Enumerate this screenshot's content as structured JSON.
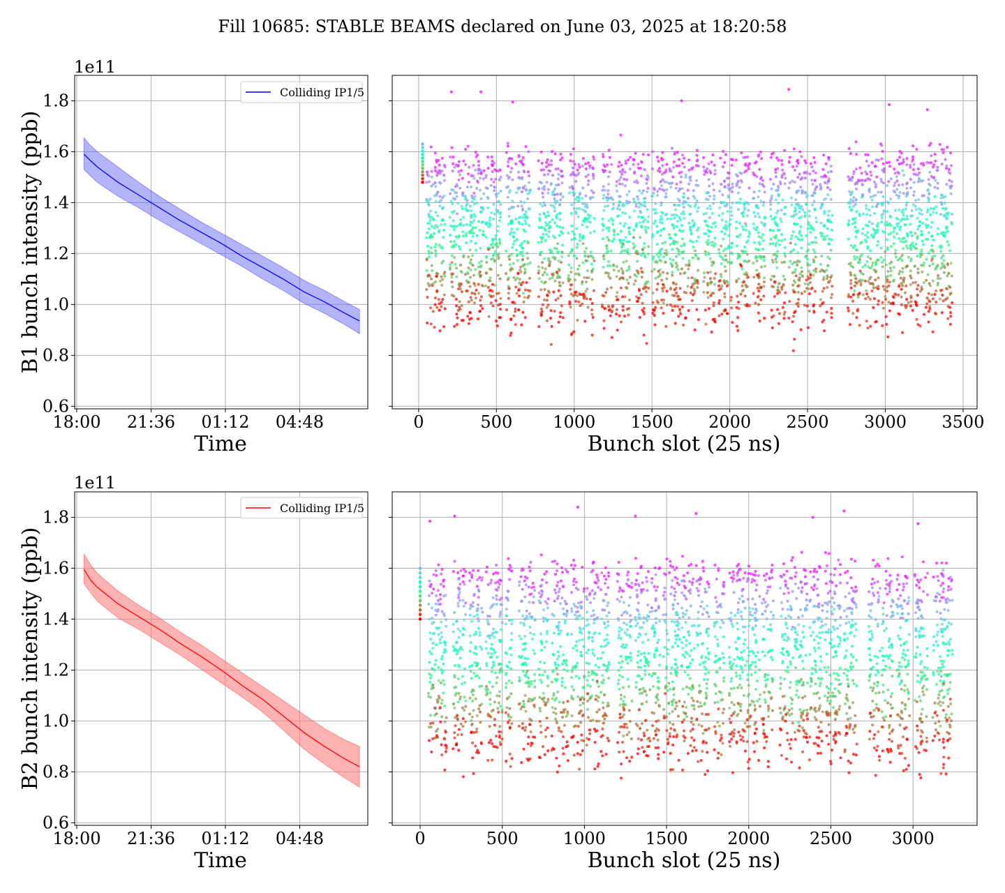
{
  "figure_title": "Fill 10685: STABLE BEAMS declared on June 03, 2025 at 18:20:58",
  "colors": {
    "b1_line": "#0000ff",
    "b1_band": "#6a6af5",
    "b2_line": "#ff0000",
    "b2_band": "#ff7f7f",
    "grid": "#b0b0b0",
    "scatter_colormap": "rainbow"
  },
  "chart_data": [
    {
      "type": "area",
      "panel": "b1-time",
      "ylabel": "B1 bunch intensity (ppb)",
      "xlabel": "Time",
      "y_multiplier": "1e11",
      "x_ticks": [
        "18:00",
        "21:36",
        "01:12",
        "04:48"
      ],
      "x_hours_since_1800": [
        0,
        3.6,
        7.2,
        10.8
      ],
      "y_ticks": [
        "0.6",
        "0.8",
        "1.0",
        "1.2",
        "1.4",
        "1.6",
        "1.8"
      ],
      "ylim": [
        0.59,
        1.9
      ],
      "xlim_hours": [
        -0.1,
        14.1
      ],
      "legend": [
        "Colliding IP1/5"
      ],
      "legend_position": "upper right",
      "grid": true,
      "series": [
        {
          "name": "Colliding IP1/5",
          "x_hours": [
            0.35,
            0.6,
            1.0,
            2.0,
            3.0,
            4.0,
            5.0,
            6.0,
            7.0,
            8.0,
            9.0,
            10.0,
            11.0,
            12.0,
            13.0,
            13.7
          ],
          "mean": [
            1.59,
            1.57,
            1.54,
            1.48,
            1.43,
            1.38,
            1.33,
            1.285,
            1.24,
            1.19,
            1.145,
            1.1,
            1.05,
            1.01,
            0.965,
            0.935
          ],
          "upper": [
            1.655,
            1.63,
            1.6,
            1.54,
            1.48,
            1.425,
            1.375,
            1.325,
            1.28,
            1.235,
            1.19,
            1.145,
            1.095,
            1.055,
            1.01,
            0.98
          ],
          "lower": [
            1.53,
            1.51,
            1.48,
            1.425,
            1.38,
            1.33,
            1.285,
            1.24,
            1.195,
            1.15,
            1.1,
            1.055,
            1.005,
            0.965,
            0.92,
            0.885
          ]
        }
      ]
    },
    {
      "type": "scatter",
      "panel": "b1-bunch",
      "xlabel": "Bunch slot (25 ns)",
      "x_ticks": [
        "0",
        "500",
        "1000",
        "1500",
        "2000",
        "2500",
        "3000",
        "3500"
      ],
      "x_tick_values": [
        0,
        500,
        1000,
        1500,
        2000,
        2500,
        3000,
        3500
      ],
      "xlim": [
        -170,
        3590
      ],
      "ylim": [
        0.59,
        1.9
      ],
      "grid": true,
      "colormap": "rainbow",
      "color_encodes": "time (purple = start of fill, red = end)",
      "intensity_range": [
        1.56,
        0.98
      ],
      "trains_x_ranges": [
        [
          50,
          170
        ],
        [
          200,
          290
        ],
        [
          300,
          420
        ],
        [
          430,
          530
        ],
        [
          560,
          620
        ],
        [
          620,
          720
        ],
        [
          770,
          810
        ],
        [
          810,
          930
        ],
        [
          960,
          1040
        ],
        [
          1050,
          1130
        ],
        [
          1180,
          1260
        ],
        [
          1270,
          1360
        ],
        [
          1380,
          1480
        ],
        [
          1500,
          1600
        ],
        [
          1610,
          1720
        ],
        [
          1730,
          1800
        ],
        [
          1830,
          1910
        ],
        [
          1930,
          2020
        ],
        [
          2040,
          2130
        ],
        [
          2150,
          2230
        ],
        [
          2260,
          2360
        ],
        [
          2380,
          2470
        ],
        [
          2480,
          2560
        ],
        [
          2580,
          2660
        ],
        [
          2760,
          2860
        ],
        [
          2870,
          2960
        ],
        [
          2970,
          3040
        ],
        [
          3050,
          3150
        ],
        [
          3160,
          3250
        ],
        [
          3260,
          3340
        ],
        [
          3350,
          3430
        ]
      ],
      "pilot_x": 25,
      "pilot_range": [
        1.48,
        1.63
      ],
      "outlier_points": [
        [
          210,
          1.835
        ],
        [
          400,
          1.835
        ],
        [
          605,
          1.795
        ],
        [
          1690,
          1.8
        ],
        [
          2380,
          1.845
        ],
        [
          3025,
          1.785
        ],
        [
          3270,
          1.765
        ]
      ]
    },
    {
      "type": "area",
      "panel": "b2-time",
      "ylabel": "B2 bunch intensity (ppb)",
      "xlabel": "Time",
      "y_multiplier": "1e11",
      "x_ticks": [
        "18:00",
        "21:36",
        "01:12",
        "04:48"
      ],
      "x_hours_since_1800": [
        0,
        3.6,
        7.2,
        10.8
      ],
      "y_ticks": [
        "0.6",
        "0.8",
        "1.0",
        "1.2",
        "1.4",
        "1.6",
        "1.8"
      ],
      "ylim": [
        0.59,
        1.9
      ],
      "xlim_hours": [
        -0.1,
        14.1
      ],
      "legend": [
        "Colliding IP1/5"
      ],
      "legend_position": "upper right",
      "grid": true,
      "series": [
        {
          "name": "Colliding IP1/5",
          "x_hours": [
            0.35,
            0.7,
            1.0,
            2.0,
            3.0,
            4.0,
            5.0,
            6.0,
            7.0,
            8.0,
            9.0,
            10.0,
            11.0,
            12.0,
            13.0,
            13.7
          ],
          "mean": [
            1.595,
            1.55,
            1.525,
            1.46,
            1.41,
            1.36,
            1.305,
            1.255,
            1.2,
            1.14,
            1.085,
            1.02,
            0.955,
            0.9,
            0.85,
            0.82
          ],
          "upper": [
            1.655,
            1.61,
            1.58,
            1.51,
            1.455,
            1.405,
            1.35,
            1.3,
            1.245,
            1.19,
            1.135,
            1.08,
            1.025,
            0.97,
            0.925,
            0.9
          ],
          "lower": [
            1.54,
            1.5,
            1.47,
            1.405,
            1.36,
            1.31,
            1.26,
            1.205,
            1.15,
            1.095,
            1.035,
            0.965,
            0.89,
            0.83,
            0.775,
            0.74
          ]
        }
      ]
    },
    {
      "type": "scatter",
      "panel": "b2-bunch",
      "xlabel": "Bunch slot (25 ns)",
      "x_ticks": [
        "0",
        "500",
        "1000",
        "1500",
        "2000",
        "2500",
        "3000"
      ],
      "x_tick_values": [
        0,
        500,
        1000,
        1500,
        2000,
        2500,
        3000
      ],
      "xlim": [
        -170,
        3390
      ],
      "ylim": [
        0.59,
        1.9
      ],
      "grid": true,
      "colormap": "rainbow",
      "color_encodes": "time (purple = start of fill, red = end)",
      "intensity_range": [
        1.58,
        0.9
      ],
      "trains_x_ranges": [
        [
          50,
          160
        ],
        [
          200,
          280
        ],
        [
          300,
          380
        ],
        [
          400,
          500
        ],
        [
          520,
          560
        ],
        [
          600,
          700
        ],
        [
          720,
          780
        ],
        [
          800,
          900
        ],
        [
          920,
          1000
        ],
        [
          1010,
          1090
        ],
        [
          1100,
          1150
        ],
        [
          1200,
          1290
        ],
        [
          1310,
          1400
        ],
        [
          1410,
          1460
        ],
        [
          1480,
          1580
        ],
        [
          1590,
          1670
        ],
        [
          1680,
          1760
        ],
        [
          1790,
          1850
        ],
        [
          1880,
          1980
        ],
        [
          1990,
          2070
        ],
        [
          2080,
          2150
        ],
        [
          2190,
          2270
        ],
        [
          2280,
          2360
        ],
        [
          2370,
          2450
        ],
        [
          2460,
          2520
        ],
        [
          2520,
          2560
        ],
        [
          2580,
          2660
        ],
        [
          2730,
          2800
        ],
        [
          2810,
          2880
        ],
        [
          2900,
          2980
        ],
        [
          3010,
          3090
        ],
        [
          3120,
          3190
        ],
        [
          3180,
          3240
        ]
      ],
      "pilot_x": 0,
      "pilot_range": [
        1.4,
        1.6
      ],
      "outlier_points": [
        [
          60,
          1.785
        ],
        [
          210,
          1.805
        ],
        [
          960,
          1.84
        ],
        [
          1310,
          1.805
        ],
        [
          1680,
          1.815
        ],
        [
          2390,
          1.8
        ],
        [
          2580,
          1.825
        ],
        [
          3030,
          1.775
        ]
      ]
    }
  ]
}
